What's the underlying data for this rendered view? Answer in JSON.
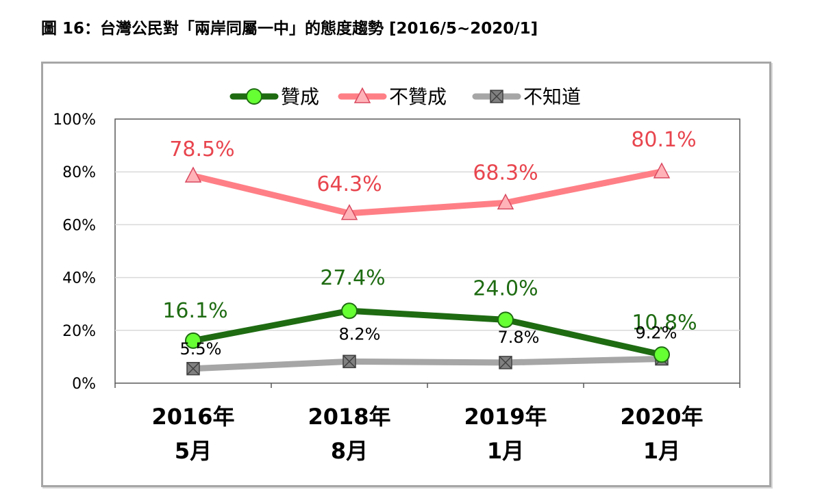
{
  "figure": {
    "title": "圖 16：台灣公民對「兩岸同屬一中」的態度趨勢  [2016/5~2020/1]"
  },
  "chart_data": {
    "type": "line",
    "categories": [
      {
        "year": "2016年",
        "month": "5月"
      },
      {
        "year": "2018年",
        "month": "8月"
      },
      {
        "year": "2019年",
        "month": "1月"
      },
      {
        "year": "2020年",
        "month": "1月"
      }
    ],
    "ylim": [
      0,
      100
    ],
    "yticks": [
      "0%",
      "20%",
      "40%",
      "60%",
      "80%",
      "100%"
    ],
    "grid": true,
    "legend_position": "top-center",
    "series": [
      {
        "name": "贊成",
        "values": [
          16.1,
          27.4,
          24.0,
          10.8
        ],
        "labels": [
          "16.1%",
          "27.4%",
          "24.0%",
          "10.8%"
        ],
        "color": "#1e6b12",
        "marker_color": "#66ff33",
        "label_color": "#1e6b12",
        "marker": "circle"
      },
      {
        "name": "不贊成",
        "values": [
          78.5,
          64.3,
          68.3,
          80.1
        ],
        "labels": [
          "78.5%",
          "64.3%",
          "68.3%",
          "80.1%"
        ],
        "color": "#ff7f86",
        "marker_color": "#ffb3b8",
        "label_color": "#e8454e",
        "marker": "triangle"
      },
      {
        "name": "不知道",
        "values": [
          5.5,
          8.2,
          7.8,
          9.2
        ],
        "labels": [
          "5.5%",
          "8.2%",
          "7.8%",
          "9.2%"
        ],
        "color": "#a6a6a6",
        "marker_color": "#808080",
        "label_color": "#000000",
        "marker": "x-square"
      }
    ]
  }
}
